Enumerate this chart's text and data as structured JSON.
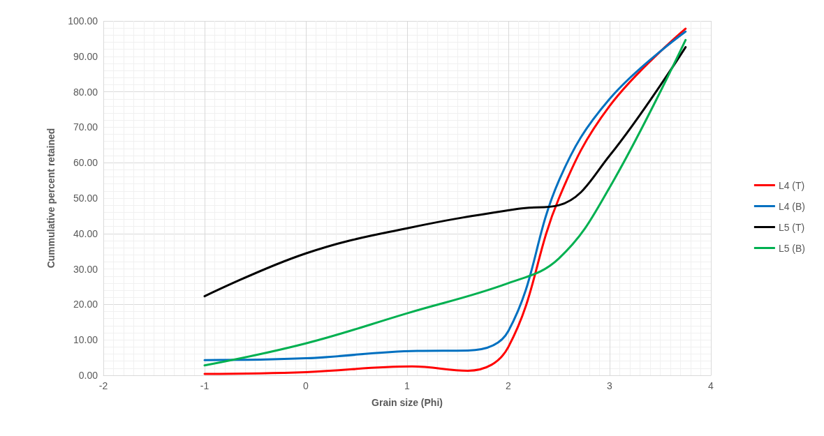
{
  "chart_data": {
    "type": "line",
    "xlabel": "Grain size (Phi)",
    "ylabel": "Cummulative percent retained",
    "xlim": [
      -2,
      4
    ],
    "xticks": [
      -2,
      -1,
      0,
      1,
      2,
      3,
      4
    ],
    "ylim": [
      0,
      100
    ],
    "yticks": [
      {
        "value": 0,
        "label": "0.00"
      },
      {
        "value": 10,
        "label": "10.00"
      },
      {
        "value": 20,
        "label": "20.00"
      },
      {
        "value": 30,
        "label": "30.00"
      },
      {
        "value": 40,
        "label": "40.00"
      },
      {
        "value": 50,
        "label": "50.00"
      },
      {
        "value": 60,
        "label": "60.00"
      },
      {
        "value": 70,
        "label": "70.00"
      },
      {
        "value": 80,
        "label": "80.00"
      },
      {
        "value": 90,
        "label": "90.00"
      },
      {
        "value": 100,
        "label": "100.00"
      }
    ],
    "grid": true,
    "legend": "right",
    "marker": "none",
    "line_style": "solid",
    "series": [
      {
        "name": "L4 (T)",
        "color": "#ff0000",
        "x": [
          -1,
          0,
          1.05,
          1.6,
          2,
          2.5,
          3,
          3.75
        ],
        "values": [
          0.4,
          0.9,
          2.5,
          1.3,
          8,
          50,
          76,
          97.8
        ]
      },
      {
        "name": "L4 (B)",
        "color": "#0070c0",
        "x": [
          -1,
          0,
          1.1,
          1.6,
          2,
          2.5,
          3,
          3.75
        ],
        "values": [
          4.3,
          4.8,
          6.9,
          7,
          12.5,
          55,
          78,
          97
        ]
      },
      {
        "name": "L5 (T)",
        "color": "#000000",
        "x": [
          -1,
          0,
          1,
          2.1,
          2.5,
          3,
          3.75
        ],
        "values": [
          22.3,
          34.4,
          41.5,
          47,
          48,
          62,
          92.6
        ]
      },
      {
        "name": "L5 (B)",
        "color": "#00b050",
        "x": [
          -1,
          0,
          1,
          2,
          2.5,
          3,
          3.75
        ],
        "values": [
          2.8,
          9,
          17.5,
          26,
          33,
          53,
          94.6
        ]
      }
    ]
  }
}
